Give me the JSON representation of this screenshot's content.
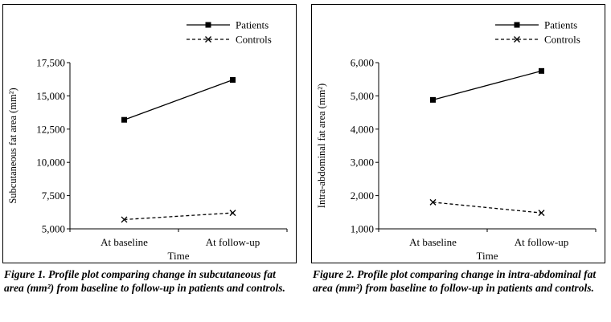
{
  "chart_data": [
    {
      "type": "line",
      "categories": [
        "At baseline",
        "At follow-up"
      ],
      "series": [
        {
          "name": "Patients",
          "values": [
            13200,
            16200
          ],
          "style": "solid",
          "marker": "square"
        },
        {
          "name": "Controls",
          "values": [
            5700,
            6200
          ],
          "style": "dashed",
          "marker": "cross"
        }
      ],
      "xlabel": "Time",
      "ylabel": "Subcutaneous fat area (mm²)",
      "ylim": [
        5000,
        17500
      ],
      "yticks": [
        "5,000",
        "7,500",
        "10,000",
        "12,500",
        "15,000",
        "17,500"
      ],
      "ytick_values": [
        5000,
        7500,
        10000,
        12500,
        15000,
        17500
      ],
      "legend_position": "top-right",
      "grid": false,
      "caption": "Figure 1. Profile plot comparing change in subcutaneous fat area (mm²) from baseline to follow-up in patients and controls."
    },
    {
      "type": "line",
      "categories": [
        "At baseline",
        "At follow-up"
      ],
      "series": [
        {
          "name": "Patients",
          "values": [
            4880,
            5750
          ],
          "style": "solid",
          "marker": "square"
        },
        {
          "name": "Controls",
          "values": [
            1800,
            1480
          ],
          "style": "dashed",
          "marker": "cross"
        }
      ],
      "xlabel": "Time",
      "ylabel": "Intra-abdominal fat area (mm²)",
      "ylim": [
        1000,
        6000
      ],
      "yticks": [
        "1,000",
        "2,000",
        "3,000",
        "4,000",
        "5,000",
        "6,000"
      ],
      "ytick_values": [
        1000,
        2000,
        3000,
        4000,
        5000,
        6000
      ],
      "legend_position": "top-right",
      "grid": false,
      "caption": "Figure 2. Profile plot comparing change in intra-abdominal fat area (mm²) from baseline to follow-up in patients and controls."
    }
  ],
  "colors": {
    "line": "#000000",
    "background": "#ffffff"
  }
}
